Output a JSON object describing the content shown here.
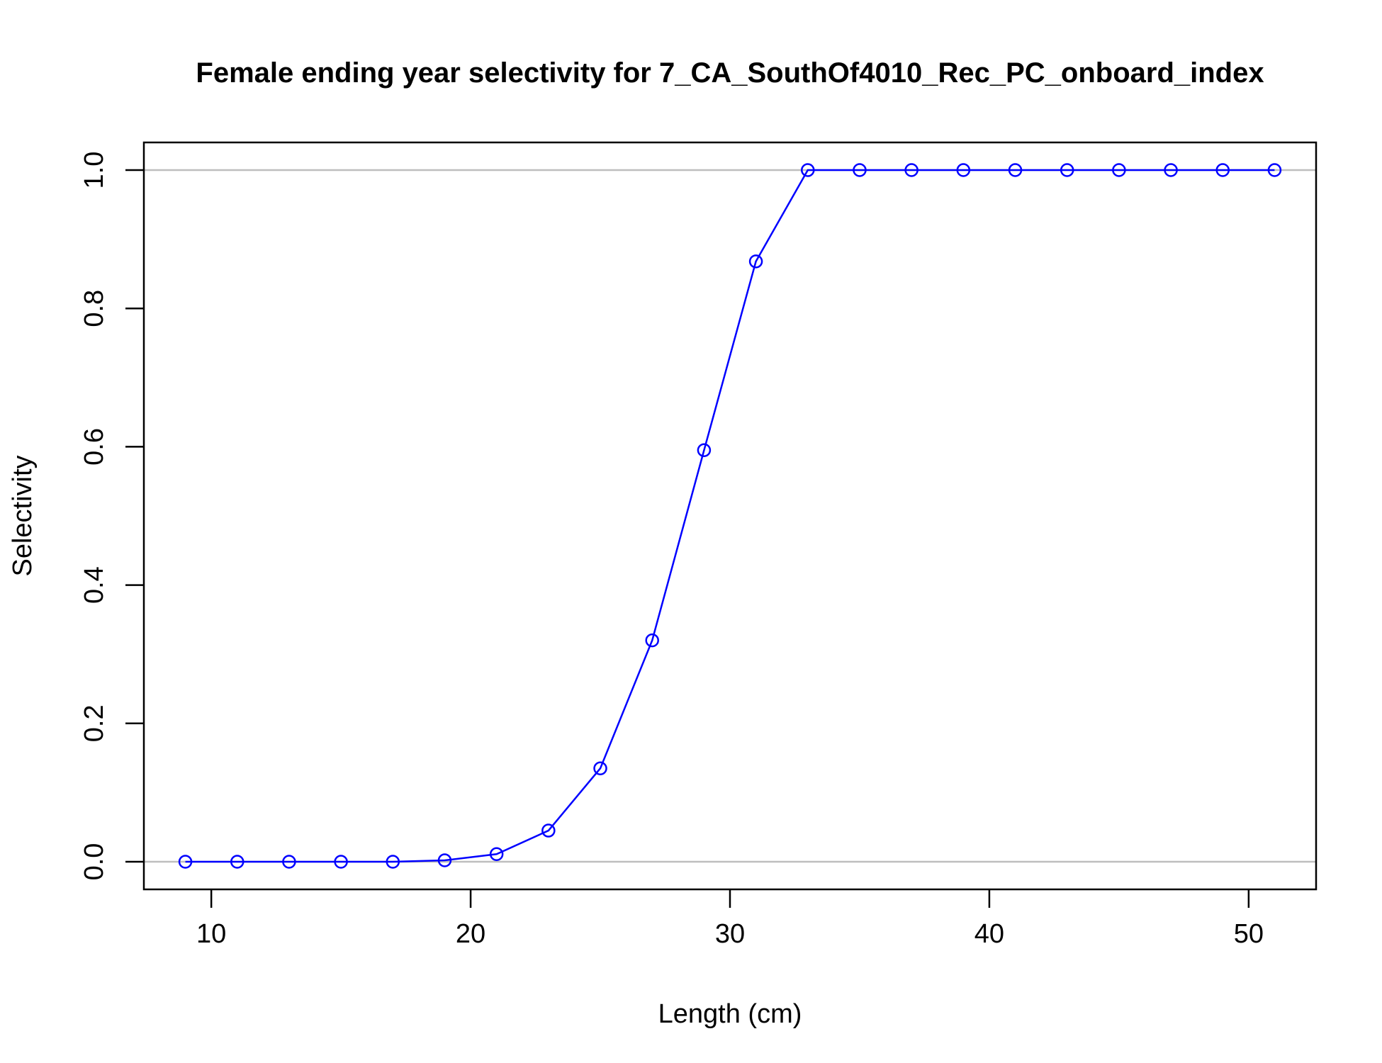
{
  "chart_data": {
    "type": "line",
    "title": "Female ending year selectivity for 7_CA_SouthOf4010_Rec_PC_onboard_index",
    "xlabel": "Length (cm)",
    "ylabel": "Selectivity",
    "xlim": [
      7.4,
      52.6
    ],
    "ylim": [
      -0.04,
      1.04
    ],
    "x_ticks": [
      10,
      20,
      30,
      40,
      50
    ],
    "y_ticks": [
      0.0,
      0.2,
      0.4,
      0.6,
      0.8,
      1.0
    ],
    "x_tick_labels": [
      "10",
      "20",
      "30",
      "40",
      "50"
    ],
    "y_tick_labels": [
      "0.0",
      "0.2",
      "0.4",
      "0.6",
      "0.8",
      "1.0"
    ],
    "reference_lines": [
      0,
      1
    ],
    "grid": false,
    "legend": "none",
    "colors": {
      "series": "#0000ff",
      "reference": "#bebebe",
      "axes": "#000000"
    },
    "series": [
      {
        "x": [
          9,
          11,
          13,
          15,
          17,
          19,
          21,
          23,
          25,
          27,
          29,
          31,
          33,
          35,
          37,
          39,
          41,
          43,
          45,
          47,
          49,
          51
        ],
        "y": [
          0.0,
          0.0,
          0.0,
          0.0,
          0.0,
          0.002,
          0.011,
          0.045,
          0.135,
          0.32,
          0.595,
          0.868,
          1.0,
          1.0,
          1.0,
          1.0,
          1.0,
          1.0,
          1.0,
          1.0,
          1.0,
          1.0
        ]
      }
    ]
  }
}
